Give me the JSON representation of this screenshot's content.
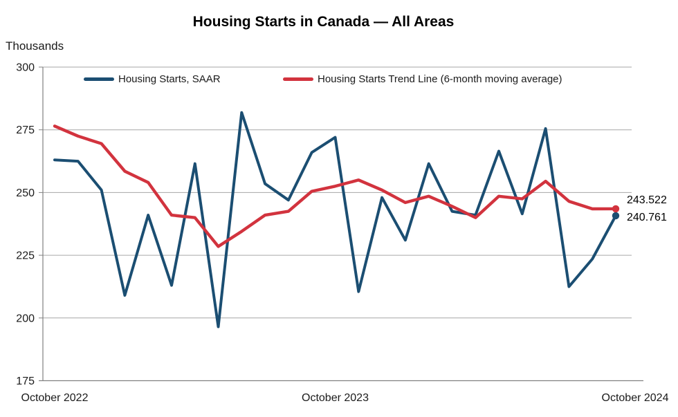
{
  "page": {
    "background": "#ffffff"
  },
  "chart_data": {
    "type": "line",
    "title": "Housing Starts in Canada — All Areas",
    "unit_label": "Thousands",
    "ylabel": "Thousands (of housing starts)",
    "ylim": [
      175,
      300
    ],
    "y_ticks": [
      300,
      275,
      250,
      225,
      200,
      175
    ],
    "x_tick_labels": [
      "October 2022",
      "October 2023",
      "October 2024"
    ],
    "grid": "horizontal",
    "legend_position": "top-inside",
    "x": [
      "Oct 2022",
      "Nov 2022",
      "Dec 2022",
      "Jan 2023",
      "Feb 2023",
      "Mar 2023",
      "Apr 2023",
      "May 2023",
      "Jun 2023",
      "Jul 2023",
      "Aug 2023",
      "Sep 2023",
      "Oct 2023",
      "Nov 2023",
      "Dec 2023",
      "Jan 2024",
      "Feb 2024",
      "Mar 2024",
      "Apr 2024",
      "May 2024",
      "Jun 2024",
      "Jul 2024",
      "Aug 2024",
      "Sep 2024",
      "Oct 2024"
    ],
    "series": [
      {
        "name": "Housing Starts, SAAR",
        "color": "#1b4e72",
        "end_label": "240.761",
        "values": [
          263,
          262.5,
          251,
          209,
          241,
          213,
          261.5,
          196.5,
          281.9,
          253.5,
          247,
          266,
          272,
          210.5,
          248,
          231,
          261.5,
          242.5,
          241,
          266.5,
          241.5,
          275.5,
          212.5,
          223.5,
          240.761
        ]
      },
      {
        "name": "Housing Starts Trend Line (6-month moving average)",
        "color": "#d2333e",
        "end_label": "243.522",
        "values": [
          276.5,
          272.5,
          269.5,
          258.5,
          254,
          241,
          240,
          228.5,
          234.5,
          241,
          242.5,
          250.5,
          252.5,
          255,
          251,
          246,
          248.5,
          244.5,
          240,
          248.5,
          247.5,
          254.5,
          246.5,
          243.5,
          243.522
        ]
      }
    ],
    "axis_color": "#808080",
    "gridline_color": "#a6a6a6",
    "label_color": "#1a1a1a"
  }
}
